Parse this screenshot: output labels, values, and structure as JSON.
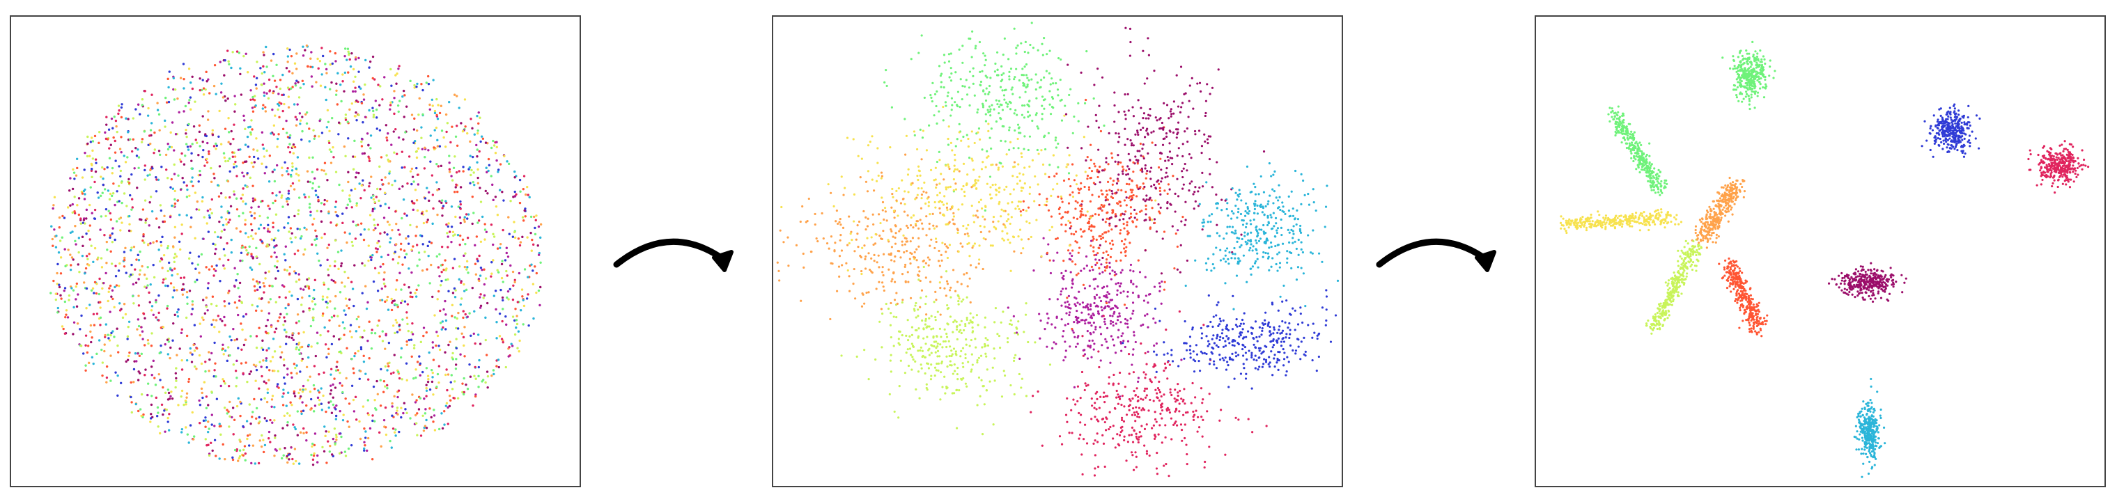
{
  "figure": {
    "stages": [
      {
        "id": "stage-1",
        "layout": "blob",
        "point_count": 3200
      },
      {
        "id": "stage-2",
        "layout": "petals",
        "point_count": 3200
      },
      {
        "id": "stage-3",
        "layout": "clusters",
        "point_count": 3200
      }
    ],
    "palette": [
      "#e0245e",
      "#9b0e6a",
      "#ff5533",
      "#ffa24a",
      "#f7e24f",
      "#c8f45a",
      "#6ff27a",
      "#2ab5d9",
      "#2f3bd6",
      "#ad1f9e"
    ],
    "arrow_icon": "curved-arrow-right-icon",
    "arrow_color": "#000000"
  }
}
